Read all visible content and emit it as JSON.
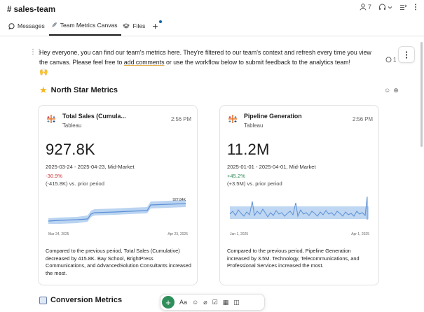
{
  "header": {
    "channel": "# sales-team",
    "members_count": "7"
  },
  "tabs": [
    {
      "label": "Messages"
    },
    {
      "label": "Team Metrics Canvas"
    },
    {
      "label": "Files"
    }
  ],
  "canvas": {
    "intro_pre": "Hey everyone, you can find our team's metrics here. They're filtered to our team's context and refresh every time you view the canvas. Please feel free to ",
    "intro_link": "add comments",
    "intro_post": " or use the workflow below to submit feedback to the analytics team!",
    "comment_count": "1",
    "section1_title": "North Star Metrics",
    "section2_title": "Conversion Metrics"
  },
  "cards": [
    {
      "title": "Total Sales (Cumula...",
      "source": "Tableau",
      "time": "2:56 PM",
      "value": "927.8K",
      "range": "2025-03-24 - 2025-04-23, Mid-Market",
      "pct": "-30.9%",
      "delta": "(-415.8K) vs. prior period",
      "chart_end_label": "927.84K",
      "x_start": "Mar 24, 2025",
      "x_end": "Apr 23, 2025",
      "description": "Compared to the previous period, Total Sales (Cumulative) decreased by 415.8K. Bay School, BrightPress Communications, and AdvancedSolution Consultants increased the most.",
      "pct_color": "#d13b3b"
    },
    {
      "title": "Pipeline Generation",
      "source": "Tableau",
      "time": "2:56 PM",
      "value": "11.2M",
      "range": "2025-01-01 - 2025-04-01, Mid-Market",
      "pct": "+45.2%",
      "delta": "(+3.5M) vs. prior period",
      "x_start": "Jan 1, 2025",
      "x_end": "Apr 1, 2025",
      "description": "Compared to the previous period, Pipeline Generation increased by 3.5M. Technology, Telecommunications, and Professional Services increased the most.",
      "pct_color": "#2e8b57"
    }
  ],
  "composer": {
    "format_label": "Aa"
  },
  "colors": {
    "accent": "#1264a3",
    "spark_band": "#a9c9ee",
    "spark_line": "#5b8fd6",
    "plus": "#2f8f5b"
  }
}
